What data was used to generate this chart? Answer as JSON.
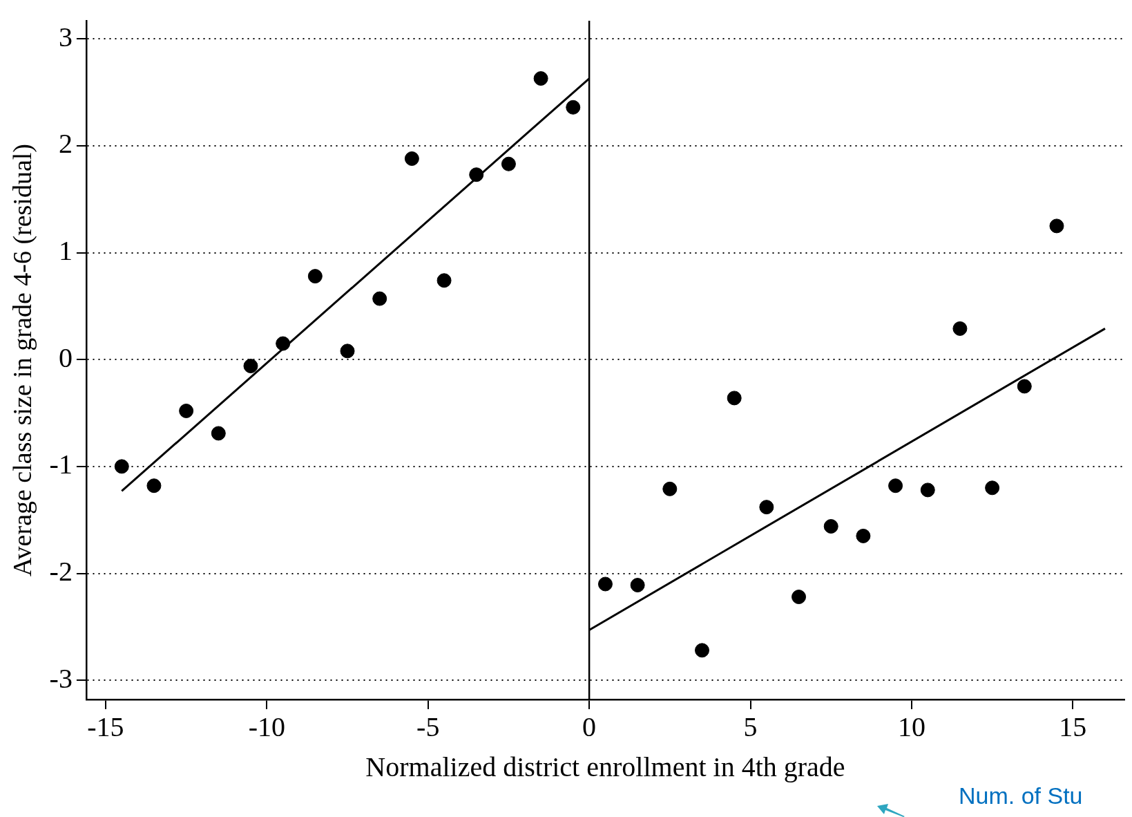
{
  "chart_data": {
    "type": "scatter",
    "xlabel": "Normalized district enrollment in 4th grade",
    "ylabel": "Average class size in grade 4-6 (residual)",
    "xlim": [
      -15.6,
      16.6
    ],
    "xticks": [
      -15,
      -10,
      -5,
      0,
      5,
      10,
      15
    ],
    "ylim": [
      -3.18,
      3.17
    ],
    "yticks": [
      -3,
      -2,
      -1,
      0,
      1,
      2,
      3
    ],
    "grid": "y",
    "legend": false,
    "marker": "circle",
    "series": [
      {
        "color": "#000000",
        "x": [
          -14.5,
          -13.5,
          -12.5,
          -11.5,
          -10.5,
          -9.5,
          -8.5,
          -7.5,
          -6.5,
          -5.5,
          -4.5,
          -3.5,
          -2.5,
          -1.5,
          -0.5
        ],
        "values": [
          -1.0,
          -1.18,
          -0.48,
          -0.69,
          -0.06,
          0.15,
          0.78,
          0.08,
          0.57,
          1.88,
          0.74,
          1.73,
          1.83,
          2.63,
          2.36
        ]
      },
      {
        "color": "#000000",
        "x": [
          0.5,
          1.5,
          2.5,
          3.5,
          4.5,
          5.5,
          6.5,
          7.5,
          8.5,
          9.5,
          10.5,
          11.5,
          12.5,
          13.5,
          14.5
        ],
        "values": [
          -2.1,
          -2.11,
          -1.21,
          -2.72,
          -0.36,
          -1.38,
          -2.22,
          -1.56,
          -1.65,
          -1.18,
          -1.22,
          0.29,
          -1.2,
          -0.25,
          1.25
        ]
      },
      {
        "type": "line",
        "color": "#000000",
        "marker": "none",
        "line_style": "solid",
        "x": [
          -14.5,
          0
        ],
        "values": [
          -1.23,
          2.63
        ]
      },
      {
        "type": "line",
        "color": "#000000",
        "marker": "none",
        "line_style": "solid",
        "x": [
          0,
          16
        ],
        "values": [
          -2.53,
          0.29
        ]
      }
    ],
    "ref_lines": [
      {
        "axis": "x",
        "value": 0,
        "color": "#000000",
        "line_style": "solid"
      }
    ],
    "annotations": [
      "Num. of Stu"
    ]
  }
}
